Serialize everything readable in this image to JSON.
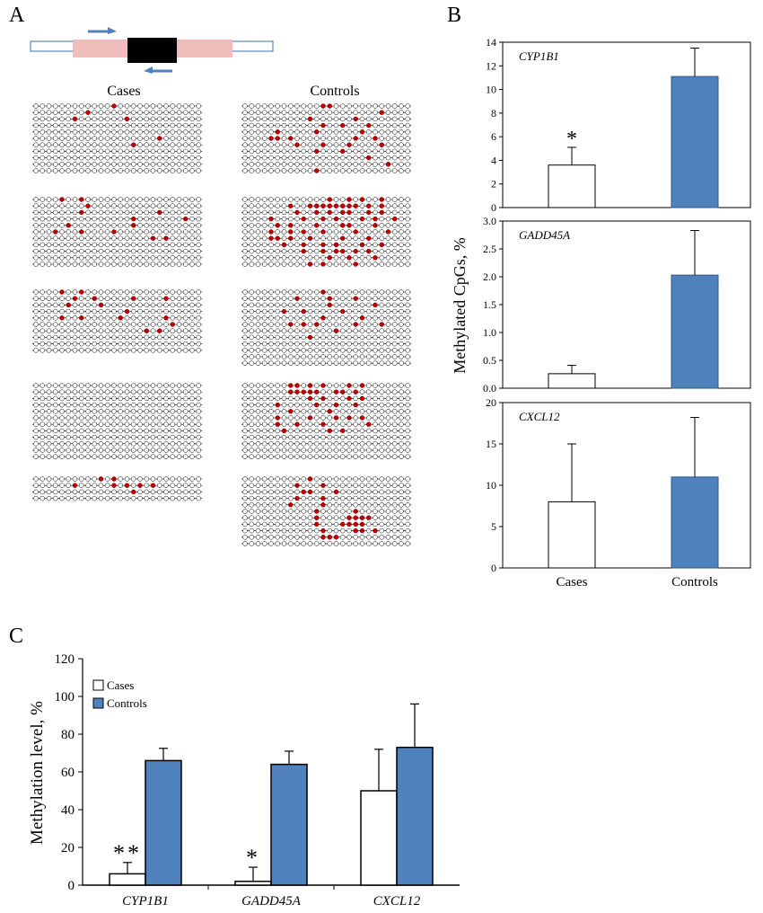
{
  "panel_letters": {
    "a": "A",
    "b": "B",
    "c": "C"
  },
  "methylation_map": {
    "group_labels": [
      "Cases",
      "Controls"
    ],
    "sites_per_clone": 26,
    "cases": [
      {
        "clones": 11,
        "methylated": [
          [
            0,
            12
          ],
          [
            1,
            8
          ],
          [
            2,
            6
          ],
          [
            2,
            14
          ],
          [
            5,
            19
          ],
          [
            6,
            15
          ]
        ]
      },
      {
        "clones": 11,
        "methylated": [
          [
            0,
            4
          ],
          [
            0,
            7
          ],
          [
            1,
            8
          ],
          [
            2,
            7
          ],
          [
            2,
            19
          ],
          [
            3,
            15
          ],
          [
            3,
            23
          ],
          [
            4,
            5
          ],
          [
            4,
            15
          ],
          [
            5,
            3
          ],
          [
            5,
            7
          ],
          [
            5,
            12
          ],
          [
            6,
            18
          ],
          [
            6,
            20
          ]
        ]
      },
      {
        "clones": 10,
        "methylated": [
          [
            0,
            4
          ],
          [
            0,
            7
          ],
          [
            1,
            6
          ],
          [
            1,
            9
          ],
          [
            1,
            15
          ],
          [
            1,
            20
          ],
          [
            2,
            5
          ],
          [
            2,
            10
          ],
          [
            3,
            14
          ],
          [
            4,
            4
          ],
          [
            4,
            7
          ],
          [
            4,
            13
          ],
          [
            4,
            20
          ],
          [
            5,
            21
          ],
          [
            6,
            17
          ],
          [
            6,
            19
          ]
        ]
      },
      {
        "clones": 12,
        "methylated": []
      },
      {
        "clones": 4,
        "methylated": [
          [
            0,
            10
          ],
          [
            0,
            12
          ],
          [
            1,
            6
          ],
          [
            1,
            12
          ],
          [
            1,
            14
          ],
          [
            1,
            16
          ],
          [
            1,
            18
          ],
          [
            2,
            15
          ]
        ]
      }
    ],
    "controls": [
      {
        "clones": 11,
        "methylated": [
          [
            0,
            12
          ],
          [
            0,
            13
          ],
          [
            1,
            21
          ],
          [
            2,
            10
          ],
          [
            2,
            17
          ],
          [
            3,
            12
          ],
          [
            3,
            15
          ],
          [
            3,
            19
          ],
          [
            4,
            5
          ],
          [
            4,
            11
          ],
          [
            4,
            18
          ],
          [
            5,
            4
          ],
          [
            5,
            5
          ],
          [
            5,
            7
          ],
          [
            5,
            17
          ],
          [
            5,
            20
          ],
          [
            6,
            8
          ],
          [
            6,
            12
          ],
          [
            6,
            16
          ],
          [
            6,
            21
          ],
          [
            7,
            11
          ],
          [
            7,
            15
          ],
          [
            8,
            19
          ],
          [
            9,
            22
          ],
          [
            10,
            11
          ]
        ]
      },
      {
        "clones": 11,
        "methylated": [
          [
            0,
            13
          ],
          [
            0,
            16
          ],
          [
            0,
            18
          ],
          [
            0,
            21
          ],
          [
            1,
            7
          ],
          [
            1,
            10
          ],
          [
            1,
            11
          ],
          [
            1,
            12
          ],
          [
            1,
            13
          ],
          [
            1,
            14
          ],
          [
            1,
            15
          ],
          [
            1,
            16
          ],
          [
            1,
            17
          ],
          [
            1,
            19
          ],
          [
            1,
            21
          ],
          [
            2,
            8
          ],
          [
            2,
            11
          ],
          [
            2,
            13
          ],
          [
            2,
            15
          ],
          [
            2,
            16
          ],
          [
            2,
            19
          ],
          [
            2,
            21
          ],
          [
            3,
            4
          ],
          [
            3,
            9
          ],
          [
            3,
            12
          ],
          [
            3,
            14
          ],
          [
            3,
            18
          ],
          [
            3,
            20
          ],
          [
            3,
            23
          ],
          [
            4,
            5
          ],
          [
            4,
            7
          ],
          [
            4,
            11
          ],
          [
            4,
            15
          ],
          [
            4,
            16
          ],
          [
            4,
            20
          ],
          [
            5,
            4
          ],
          [
            5,
            7
          ],
          [
            5,
            9
          ],
          [
            5,
            12
          ],
          [
            5,
            17
          ],
          [
            5,
            22
          ],
          [
            6,
            4
          ],
          [
            6,
            5
          ],
          [
            6,
            7
          ],
          [
            6,
            10
          ],
          [
            6,
            15
          ],
          [
            6,
            19
          ],
          [
            7,
            6
          ],
          [
            7,
            9
          ],
          [
            7,
            12
          ],
          [
            7,
            14
          ],
          [
            7,
            18
          ],
          [
            7,
            21
          ],
          [
            8,
            9
          ],
          [
            8,
            12
          ],
          [
            8,
            14
          ],
          [
            8,
            15
          ],
          [
            8,
            17
          ],
          [
            8,
            19
          ],
          [
            9,
            13
          ],
          [
            9,
            16
          ],
          [
            9,
            20
          ],
          [
            10,
            10
          ],
          [
            10,
            12
          ],
          [
            10,
            17
          ]
        ]
      },
      {
        "clones": 12,
        "methylated": [
          [
            0,
            12
          ],
          [
            1,
            8
          ],
          [
            1,
            13
          ],
          [
            1,
            17
          ],
          [
            2,
            13
          ],
          [
            2,
            20
          ],
          [
            3,
            6
          ],
          [
            3,
            9
          ],
          [
            3,
            15
          ],
          [
            4,
            12
          ],
          [
            4,
            18
          ],
          [
            5,
            7
          ],
          [
            5,
            9
          ],
          [
            5,
            11
          ],
          [
            5,
            17
          ],
          [
            5,
            21
          ],
          [
            6,
            14
          ],
          [
            7,
            10
          ]
        ]
      },
      {
        "clones": 12,
        "methylated": [
          [
            0,
            7
          ],
          [
            0,
            8
          ],
          [
            0,
            10
          ],
          [
            0,
            12
          ],
          [
            0,
            16
          ],
          [
            0,
            18
          ],
          [
            1,
            7
          ],
          [
            1,
            8
          ],
          [
            1,
            9
          ],
          [
            1,
            10
          ],
          [
            1,
            11
          ],
          [
            1,
            14
          ],
          [
            1,
            15
          ],
          [
            1,
            17
          ],
          [
            2,
            10
          ],
          [
            2,
            12
          ],
          [
            2,
            16
          ],
          [
            2,
            18
          ],
          [
            3,
            5
          ],
          [
            3,
            11
          ],
          [
            3,
            14
          ],
          [
            3,
            17
          ],
          [
            4,
            7
          ],
          [
            4,
            13
          ],
          [
            5,
            5
          ],
          [
            5,
            10
          ],
          [
            5,
            14
          ],
          [
            5,
            16
          ],
          [
            5,
            18
          ],
          [
            6,
            5
          ],
          [
            6,
            8
          ],
          [
            6,
            12
          ],
          [
            6,
            19
          ],
          [
            7,
            6
          ],
          [
            7,
            13
          ],
          [
            7,
            15
          ]
        ]
      },
      {
        "clones": 11,
        "methylated": [
          [
            0,
            10
          ],
          [
            1,
            8
          ],
          [
            1,
            12
          ],
          [
            2,
            9
          ],
          [
            2,
            10
          ],
          [
            2,
            14
          ],
          [
            3,
            8
          ],
          [
            3,
            12
          ],
          [
            4,
            7
          ],
          [
            4,
            12
          ],
          [
            5,
            11
          ],
          [
            5,
            17
          ],
          [
            6,
            11
          ],
          [
            6,
            16
          ],
          [
            6,
            17
          ],
          [
            6,
            18
          ],
          [
            6,
            19
          ],
          [
            7,
            11
          ],
          [
            7,
            15
          ],
          [
            7,
            16
          ],
          [
            7,
            17
          ],
          [
            7,
            18
          ],
          [
            8,
            12
          ],
          [
            8,
            17
          ],
          [
            8,
            18
          ],
          [
            8,
            20
          ],
          [
            9,
            12
          ],
          [
            9,
            13
          ],
          [
            9,
            14
          ]
        ]
      }
    ]
  },
  "chart_data": [
    {
      "type": "bar",
      "panel": "B",
      "ylabel": "Methylated CpGs, %",
      "categories": [
        "Cases",
        "Controls"
      ],
      "colors": [
        "#ffffff",
        "#4f81bd"
      ],
      "panels": [
        {
          "gene": "CYP1B1",
          "values": [
            3.6,
            11.1
          ],
          "errors": [
            1.5,
            2.4
          ],
          "ylim": [
            0,
            14
          ],
          "ticks": [
            "0",
            "2",
            "4",
            "6",
            "8",
            "10",
            "12",
            "14"
          ],
          "annotations": [
            "*",
            ""
          ]
        },
        {
          "gene": "GADD45A",
          "values": [
            0.26,
            2.03
          ],
          "errors": [
            0.15,
            0.8
          ],
          "ylim": [
            0,
            3.0
          ],
          "ticks": [
            "0.0",
            "0.5",
            "1.0",
            "1.5",
            "2.0",
            "2.5",
            "3.0"
          ],
          "annotations": [
            "",
            ""
          ]
        },
        {
          "gene": "CXCL12",
          "values": [
            8,
            11
          ],
          "errors": [
            7,
            7.2
          ],
          "ylim": [
            0,
            20
          ],
          "ticks": [
            "0",
            "5",
            "10",
            "15",
            "20"
          ],
          "annotations": [
            "",
            ""
          ]
        }
      ]
    },
    {
      "type": "bar",
      "panel": "C",
      "ylabel": "Methylation level, %",
      "categories": [
        "CYP1B1",
        "GADD45A",
        "CXCL12"
      ],
      "series": [
        {
          "name": "Cases",
          "values": [
            6,
            2,
            50
          ],
          "errors": [
            6,
            7.5,
            22
          ],
          "color": "#ffffff",
          "annotations": [
            "**",
            "*",
            ""
          ]
        },
        {
          "name": "Controls",
          "values": [
            66,
            64,
            73
          ],
          "errors": [
            6.5,
            7,
            23
          ],
          "color": "#4f81bd",
          "annotations": [
            "",
            "",
            ""
          ]
        }
      ],
      "ylim": [
        0,
        120
      ],
      "ticks": [
        "0",
        "20",
        "40",
        "60",
        "80",
        "100",
        "120"
      ],
      "legend_position": "top-left"
    }
  ]
}
